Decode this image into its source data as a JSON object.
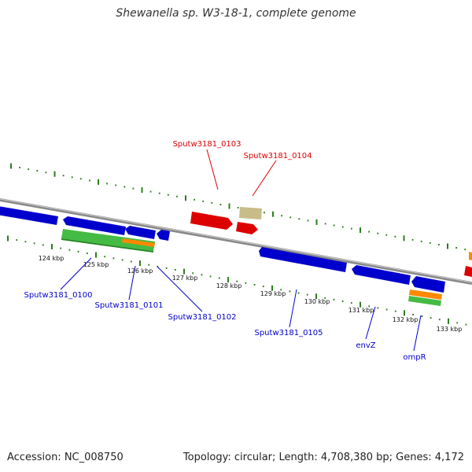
{
  "title": "Shewanella sp. W3-18-1, complete genome",
  "footer": {
    "accession": "Accession: NC_008750",
    "summary": "Topology: circular; Length: 4,708,380 bp; Genes: 4,172"
  },
  "colors": {
    "backbone": "#888888",
    "backbone_highlight": "#cfcfcf",
    "tick": "#2e7d1e",
    "gene_forward": "#dd0000",
    "gene_reverse": "#0000cc",
    "cds_green": "#44bb44",
    "rna_orange": "#ff8800",
    "misc_tan": "#c8bc88",
    "tick_label": "#111111"
  },
  "scale_labels": [
    "124 kbp",
    "125 kbp",
    "126 kbp",
    "127 kbp",
    "128 kbp",
    "129 kbp",
    "130 kbp",
    "131 kbp",
    "132 kbp",
    "133 kbp"
  ],
  "gene_labels": {
    "forward": [
      "Sputw3181_0103",
      "Sputw3181_0104"
    ],
    "reverse": [
      "Sputw3181_0100",
      "Sputw3181_0101",
      "Sputw3181_0102",
      "Sputw3181_0105",
      "envZ",
      "ompR"
    ]
  }
}
